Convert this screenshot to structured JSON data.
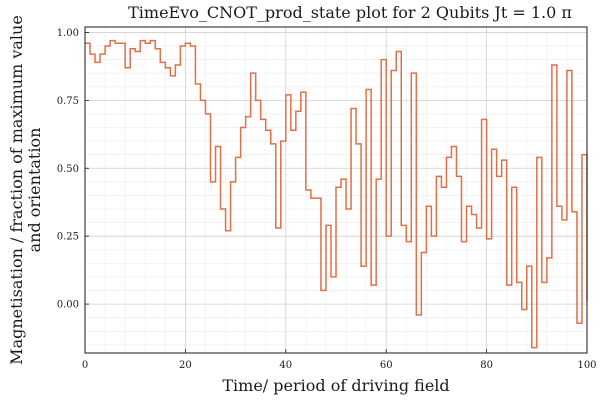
{
  "chart_data": {
    "type": "line",
    "drawstyle": "step",
    "title": "TimeEvo_CNOT_prod_state plot for 2 Qubits Jt = 1.0 π",
    "xlabel": "Time/ period of driving field",
    "ylabel_lines": [
      "Magnetisation / fraction of maximum value",
      "and orientation"
    ],
    "xlim": [
      0,
      100
    ],
    "ylim": [
      -0.18,
      1.02
    ],
    "xticks": [
      0,
      20,
      40,
      60,
      80,
      100
    ],
    "xtick_labels": [
      "0",
      "20",
      "40",
      "60",
      "80",
      "100"
    ],
    "yticks": [
      0.0,
      0.25,
      0.5,
      0.75,
      1.0
    ],
    "ytick_labels": [
      "0.00",
      "0.25",
      "0.50",
      "0.75",
      "1.00"
    ],
    "grid": true,
    "legend": false,
    "line_color": "#e26f46",
    "series": [
      {
        "x": [
          0,
          1,
          2,
          3,
          4,
          5,
          6,
          7,
          8,
          9,
          10,
          11,
          12,
          13,
          14,
          15,
          16,
          17,
          18,
          19,
          20,
          21,
          22,
          23,
          24,
          25,
          26,
          27,
          28,
          29,
          30,
          31,
          32,
          33,
          34,
          35,
          36,
          37,
          38,
          39,
          40,
          41,
          42,
          43,
          44,
          45,
          46,
          47,
          48,
          49,
          50,
          51,
          52,
          53,
          54,
          55,
          56,
          57,
          58,
          59,
          60,
          61,
          62,
          63,
          64,
          65,
          66,
          67,
          68,
          69,
          70,
          71,
          72,
          73,
          74,
          75,
          76,
          77,
          78,
          79,
          80,
          81,
          82,
          83,
          84,
          85,
          86,
          87,
          88,
          89,
          90,
          91,
          92,
          93,
          94,
          95,
          96,
          97,
          98,
          99,
          100
        ],
        "values": [
          0.96,
          0.92,
          0.89,
          0.92,
          0.95,
          0.97,
          0.96,
          0.96,
          0.87,
          0.94,
          0.93,
          0.97,
          0.96,
          0.97,
          0.94,
          0.89,
          0.87,
          0.84,
          0.88,
          0.95,
          0.96,
          0.95,
          0.81,
          0.75,
          0.7,
          0.45,
          0.58,
          0.35,
          0.27,
          0.45,
          0.54,
          0.65,
          0.69,
          0.85,
          0.75,
          0.68,
          0.64,
          0.59,
          0.28,
          0.6,
          0.77,
          0.64,
          0.71,
          0.78,
          0.42,
          0.39,
          0.39,
          0.05,
          0.29,
          0.1,
          0.43,
          0.46,
          0.35,
          0.72,
          0.59,
          0.14,
          0.79,
          0.07,
          0.46,
          0.9,
          0.25,
          0.86,
          0.93,
          0.29,
          0.23,
          0.85,
          -0.04,
          0.19,
          0.36,
          0.25,
          0.47,
          0.43,
          0.54,
          0.58,
          0.47,
          0.23,
          0.36,
          0.33,
          0.28,
          0.68,
          0.24,
          0.57,
          0.47,
          0.53,
          0.07,
          0.43,
          0.08,
          -0.02,
          0.14,
          -0.16,
          0.54,
          0.08,
          0.17,
          0.88,
          0.36,
          0.31,
          0.86,
          0.34,
          -0.07,
          0.55,
          0.01
        ]
      }
    ]
  }
}
